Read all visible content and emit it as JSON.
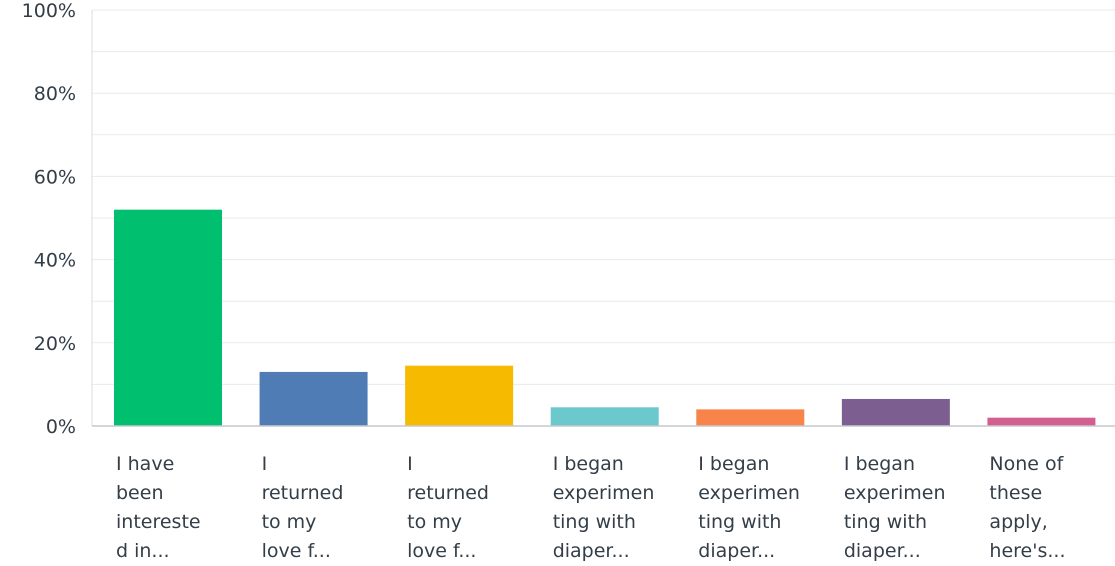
{
  "chart_data": {
    "type": "bar",
    "categories": [
      "I have\nbeen\nintereste\nd in...",
      "I\nreturned\nto my\nlove f...",
      "I\nreturned\nto my\nlove f...",
      "I began\nexperimen\nting with\ndiaper...",
      "I began\nexperimen\nting with\ndiaper...",
      "I began\nexperimen\nting with\ndiaper...",
      "None of\nthese\napply,\nhere's..."
    ],
    "values": [
      52,
      13,
      14.5,
      4.5,
      4,
      6.5,
      2
    ],
    "colors": [
      "#00bf6f",
      "#507cb6",
      "#f6bb00",
      "#6bc8cd",
      "#f9844a",
      "#7d5e90",
      "#d25f90"
    ],
    "y_ticks": [
      "0%",
      "20%",
      "40%",
      "60%",
      "80%",
      "100%"
    ],
    "ylim": [
      0,
      100
    ],
    "grid": true,
    "title": "",
    "xlabel": "",
    "ylabel": ""
  }
}
